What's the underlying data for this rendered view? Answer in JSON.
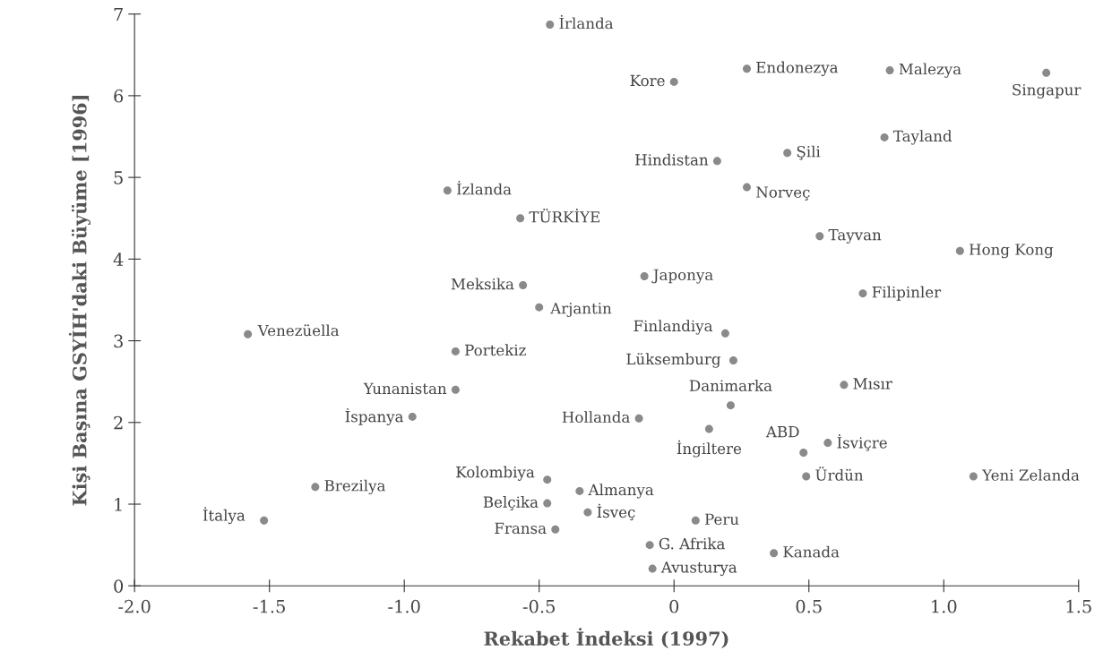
{
  "chart_data": {
    "type": "scatter",
    "xlabel": "Rekabet İndeksi (1997)",
    "ylabel": "Kişi Başına GSYİH'daki Büyüme [1996]",
    "xlim": [
      -2.0,
      1.5
    ],
    "xticks": [
      {
        "value": -2.0,
        "label": "-2.0"
      },
      {
        "value": -1.5,
        "label": "-1.5"
      },
      {
        "value": -1.0,
        "label": "-1.0"
      },
      {
        "value": -0.5,
        "label": "-0.5"
      },
      0,
      0.5,
      {
        "value": 1.0,
        "label": "1.0"
      },
      1.5
    ],
    "ylim": [
      0,
      7
    ],
    "yticks": [
      0,
      1,
      2,
      3,
      4,
      5,
      6,
      7
    ],
    "grid": false,
    "legend": false,
    "marker": "circle",
    "series": [
      {
        "name": "İrlanda",
        "color": "#8a8a8a",
        "x": [
          -0.46
        ],
        "values": [
          6.87
        ]
      },
      {
        "name": "İzlanda",
        "color": "#8a8a8a",
        "x": [
          -0.84
        ],
        "values": [
          4.84
        ]
      },
      {
        "name": "TÜRKİYE",
        "color": "#8a8a8a",
        "x": [
          -0.57
        ],
        "values": [
          4.5
        ]
      },
      {
        "name": "Meksika",
        "color": "#8a8a8a",
        "x": [
          -0.56
        ],
        "values": [
          3.68
        ]
      },
      {
        "name": "Kore",
        "color": "#8a8a8a",
        "x": [
          0.0
        ],
        "values": [
          6.17
        ]
      },
      {
        "name": "Endonezya",
        "color": "#8a8a8a",
        "x": [
          0.27
        ],
        "values": [
          6.33
        ]
      },
      {
        "name": "Malezya",
        "color": "#8a8a8a",
        "x": [
          0.8
        ],
        "values": [
          6.31
        ]
      },
      {
        "name": "Singapur",
        "color": "#8a8a8a",
        "x": [
          1.38
        ],
        "values": [
          6.28
        ]
      },
      {
        "name": "Tayland",
        "color": "#8a8a8a",
        "x": [
          0.78
        ],
        "values": [
          5.49
        ]
      },
      {
        "name": "Şili",
        "color": "#8a8a8a",
        "x": [
          0.42
        ],
        "values": [
          5.3
        ]
      },
      {
        "name": "Hindistan",
        "color": "#8a8a8a",
        "x": [
          0.16
        ],
        "values": [
          5.2
        ]
      },
      {
        "name": "Norveç",
        "color": "#8a8a8a",
        "x": [
          0.27
        ],
        "values": [
          4.88
        ]
      },
      {
        "name": "Tayvan",
        "color": "#8a8a8a",
        "x": [
          0.54
        ],
        "values": [
          4.28
        ]
      },
      {
        "name": "Hong Kong",
        "color": "#8a8a8a",
        "x": [
          1.06
        ],
        "values": [
          4.1
        ]
      },
      {
        "name": "Japonya",
        "color": "#8a8a8a",
        "x": [
          -0.11
        ],
        "values": [
          3.79
        ]
      },
      {
        "name": "Filipinler",
        "color": "#8a8a8a",
        "x": [
          0.7
        ],
        "values": [
          3.58
        ]
      },
      {
        "name": "Arjantin",
        "color": "#8a8a8a",
        "x": [
          -0.5
        ],
        "values": [
          3.41
        ]
      },
      {
        "name": "Venezüella",
        "color": "#8a8a8a",
        "x": [
          -1.58
        ],
        "values": [
          3.08
        ]
      },
      {
        "name": "Portekiz",
        "color": "#8a8a8a",
        "x": [
          -0.81
        ],
        "values": [
          2.87
        ]
      },
      {
        "name": "Yunanistan",
        "color": "#8a8a8a",
        "x": [
          -0.81
        ],
        "values": [
          2.4
        ]
      },
      {
        "name": "İspanya",
        "color": "#8a8a8a",
        "x": [
          -0.97
        ],
        "values": [
          2.07
        ]
      },
      {
        "name": "Kolombiya",
        "color": "#8a8a8a",
        "x": [
          -0.47
        ],
        "values": [
          1.3
        ]
      },
      {
        "name": "Brezilya",
        "color": "#8a8a8a",
        "x": [
          -1.33
        ],
        "values": [
          1.21
        ]
      },
      {
        "name": "Almanya",
        "color": "#8a8a8a",
        "x": [
          -0.35
        ],
        "values": [
          1.16
        ]
      },
      {
        "name": "Belçika",
        "color": "#8a8a8a",
        "x": [
          -0.47
        ],
        "values": [
          1.01
        ]
      },
      {
        "name": "İsveç",
        "color": "#8a8a8a",
        "x": [
          -0.32
        ],
        "values": [
          0.9
        ]
      },
      {
        "name": "İtalya",
        "color": "#8a8a8a",
        "x": [
          -1.52
        ],
        "values": [
          0.8
        ]
      },
      {
        "name": "Fransa",
        "color": "#8a8a8a",
        "x": [
          -0.44
        ],
        "values": [
          0.69
        ]
      },
      {
        "name": "Finlandiya",
        "color": "#8a8a8a",
        "x": [
          0.19
        ],
        "values": [
          3.09
        ]
      },
      {
        "name": "Lüksemburg",
        "color": "#8a8a8a",
        "x": [
          0.22
        ],
        "values": [
          2.76
        ]
      },
      {
        "name": "Mısır",
        "color": "#8a8a8a",
        "x": [
          0.63
        ],
        "values": [
          2.46
        ]
      },
      {
        "name": "Danimarka",
        "color": "#8a8a8a",
        "x": [
          0.21
        ],
        "values": [
          2.21
        ]
      },
      {
        "name": "Hollanda",
        "color": "#8a8a8a",
        "x": [
          -0.13
        ],
        "values": [
          2.05
        ]
      },
      {
        "name": "İngiltere",
        "color": "#8a8a8a",
        "x": [
          0.13
        ],
        "values": [
          1.92
        ]
      },
      {
        "name": "İsviçre",
        "color": "#8a8a8a",
        "x": [
          0.57
        ],
        "values": [
          1.75
        ]
      },
      {
        "name": "ABD",
        "color": "#8a8a8a",
        "x": [
          0.48
        ],
        "values": [
          1.63
        ]
      },
      {
        "name": "Ürdün",
        "color": "#8a8a8a",
        "x": [
          0.49
        ],
        "values": [
          1.34
        ]
      },
      {
        "name": "Yeni Zelanda",
        "color": "#8a8a8a",
        "x": [
          1.11
        ],
        "values": [
          1.34
        ]
      },
      {
        "name": "Peru",
        "color": "#8a8a8a",
        "x": [
          0.08
        ],
        "values": [
          0.8
        ]
      },
      {
        "name": "G. Afrika",
        "color": "#8a8a8a",
        "x": [
          -0.09
        ],
        "values": [
          0.5
        ]
      },
      {
        "name": "Kanada",
        "color": "#8a8a8a",
        "x": [
          0.37
        ],
        "values": [
          0.4
        ]
      },
      {
        "name": "Avusturya",
        "color": "#8a8a8a",
        "x": [
          -0.08
        ],
        "values": [
          0.21
        ]
      }
    ]
  }
}
